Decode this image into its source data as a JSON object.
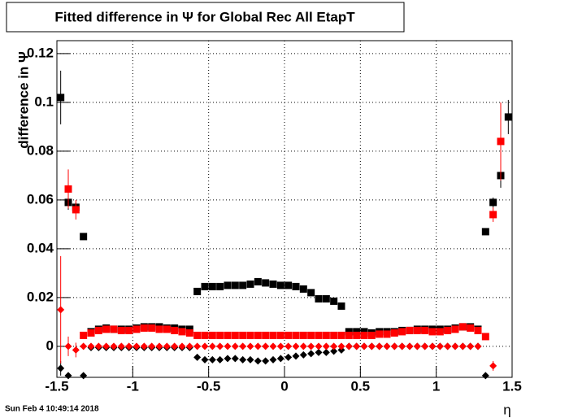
{
  "chart_data": {
    "type": "errorbar-scatter",
    "title": "Fitted difference in  Ψ  for Global Rec All EtapT",
    "y_label": "difference in  Ψ",
    "x_label": "η",
    "timestamp": "Sun Feb  4 10:49:14 2018",
    "xlim": [
      -1.5,
      1.5
    ],
    "ylim": [
      -0.0127,
      0.1253
    ],
    "xticks": [
      -1.5,
      -1,
      -0.5,
      0,
      0.5,
      1,
      1.5
    ],
    "yticks": [
      0,
      0.02,
      0.04,
      0.06,
      0.08,
      0.1,
      0.12
    ],
    "grid": true,
    "x": [
      -1.475,
      -1.425,
      -1.375,
      -1.325,
      -1.275,
      -1.225,
      -1.175,
      -1.125,
      -1.075,
      -1.025,
      -0.975,
      -0.925,
      -0.875,
      -0.825,
      -0.775,
      -0.725,
      -0.675,
      -0.625,
      -0.575,
      -0.525,
      -0.475,
      -0.425,
      -0.375,
      -0.325,
      -0.275,
      -0.225,
      -0.175,
      -0.125,
      -0.075,
      -0.025,
      0.025,
      0.075,
      0.125,
      0.175,
      0.225,
      0.275,
      0.325,
      0.375,
      0.425,
      0.475,
      0.525,
      0.575,
      0.625,
      0.675,
      0.725,
      0.775,
      0.825,
      0.875,
      0.925,
      0.975,
      1.025,
      1.075,
      1.125,
      1.175,
      1.225,
      1.275,
      1.325,
      1.375,
      1.425,
      1.475
    ],
    "series": [
      {
        "marker": "square",
        "color": "#000000",
        "values": [
          0.102,
          0.059,
          0.057,
          0.045,
          0.006,
          0.007,
          0.0075,
          0.007,
          0.007,
          0.007,
          0.0075,
          0.008,
          0.008,
          0.008,
          0.0075,
          0.0075,
          0.007,
          0.007,
          0.0225,
          0.0245,
          0.0245,
          0.0245,
          0.025,
          0.025,
          0.025,
          0.0255,
          0.0265,
          0.026,
          0.0255,
          0.025,
          0.025,
          0.0245,
          0.0235,
          0.022,
          0.0195,
          0.0195,
          0.0185,
          0.0165,
          0.006,
          0.006,
          0.006,
          0.0055,
          0.006,
          0.006,
          0.006,
          0.0065,
          0.0065,
          0.007,
          0.007,
          0.007,
          0.007,
          0.007,
          0.0075,
          0.008,
          0.008,
          0.007,
          0.047,
          0.059,
          0.07,
          0.094
        ],
        "errors": [
          0.011,
          0.003,
          0.002,
          0.001,
          0.0005,
          0.0005,
          0.0005,
          0.0005,
          0.0005,
          0.0005,
          0.0005,
          0.0005,
          0.0005,
          0.0005,
          0.0005,
          0.0005,
          0.0005,
          0.0005,
          0.0005,
          0.0005,
          0.0005,
          0.0005,
          0.0005,
          0.0005,
          0.0005,
          0.0005,
          0.0005,
          0.0005,
          0.0005,
          0.0005,
          0.0005,
          0.0005,
          0.0005,
          0.0005,
          0.0005,
          0.0005,
          0.0005,
          0.0005,
          0.0005,
          0.0005,
          0.0005,
          0.0005,
          0.0005,
          0.0005,
          0.0005,
          0.0005,
          0.0005,
          0.0005,
          0.0005,
          0.0005,
          0.0005,
          0.0005,
          0.0005,
          0.0005,
          0.0005,
          0.0005,
          0.001,
          0.002,
          0.005,
          0.007
        ]
      },
      {
        "marker": "square",
        "color": "#ff0000",
        "values": [
          null,
          0.0645,
          0.056,
          0.0045,
          0.0055,
          0.0065,
          0.007,
          0.007,
          0.0065,
          0.0065,
          0.007,
          0.0075,
          0.0075,
          0.007,
          0.007,
          0.0065,
          0.006,
          0.0055,
          0.0045,
          0.0045,
          0.0045,
          0.0045,
          0.0045,
          0.0045,
          0.0045,
          0.0045,
          0.0045,
          0.0045,
          0.0045,
          0.0045,
          0.0045,
          0.0045,
          0.0045,
          0.0045,
          0.0045,
          0.0045,
          0.0045,
          0.0045,
          0.0045,
          0.0045,
          0.0045,
          0.0045,
          0.005,
          0.005,
          0.0055,
          0.006,
          0.0065,
          0.0065,
          0.0065,
          0.006,
          0.006,
          0.0065,
          0.007,
          0.008,
          0.0075,
          0.0065,
          0.004,
          0.054,
          0.084,
          null
        ],
        "errors": [
          null,
          0.008,
          0.004,
          0.0005,
          0.0005,
          0.0005,
          0.0005,
          0.0005,
          0.0005,
          0.0005,
          0.0005,
          0.0005,
          0.0005,
          0.0005,
          0.0005,
          0.0005,
          0.0005,
          0.0005,
          0.0005,
          0.0005,
          0.0005,
          0.0005,
          0.0005,
          0.0005,
          0.0005,
          0.0005,
          0.0005,
          0.0005,
          0.0005,
          0.0005,
          0.0005,
          0.0005,
          0.0005,
          0.0005,
          0.0005,
          0.0005,
          0.0005,
          0.0005,
          0.0005,
          0.0005,
          0.0005,
          0.0005,
          0.0005,
          0.0005,
          0.0005,
          0.0005,
          0.0005,
          0.0005,
          0.0005,
          0.0005,
          0.0005,
          0.0005,
          0.0005,
          0.0005,
          0.0005,
          0.0005,
          0.001,
          0.003,
          0.016,
          null
        ]
      },
      {
        "marker": "diamond",
        "color": "#000000",
        "values": [
          -0.009,
          -0.012,
          null,
          -0.012,
          -0.0005,
          -0.0005,
          -0.0005,
          -0.0005,
          -0.0005,
          -0.0005,
          -0.0005,
          -0.0005,
          -0.0005,
          -0.0005,
          -0.0005,
          -0.0005,
          -0.0005,
          -0.0005,
          -0.0045,
          -0.0055,
          -0.0055,
          -0.0055,
          -0.005,
          -0.005,
          -0.0055,
          -0.0055,
          -0.006,
          -0.006,
          -0.0055,
          -0.005,
          -0.0045,
          -0.004,
          -0.0035,
          -0.003,
          -0.0025,
          -0.0025,
          -0.002,
          -0.0015,
          0,
          0,
          0,
          0,
          0,
          0,
          0,
          0,
          0,
          0,
          0,
          0,
          0,
          0,
          0,
          0,
          0,
          0,
          -0.012,
          null,
          null,
          null
        ],
        "errors": [
          0.003,
          0.001,
          null,
          0.001,
          0.0003,
          0.0003,
          0.0003,
          0.0003,
          0.0003,
          0.0003,
          0.0003,
          0.0003,
          0.0003,
          0.0003,
          0.0003,
          0.0003,
          0.0003,
          0.0003,
          0.0003,
          0.0003,
          0.0003,
          0.0003,
          0.0003,
          0.0003,
          0.0003,
          0.0003,
          0.0003,
          0.0003,
          0.0003,
          0.0003,
          0.0003,
          0.0003,
          0.0003,
          0.0003,
          0.0003,
          0.0003,
          0.0003,
          0.0003,
          0.0003,
          0.0003,
          0.0003,
          0.0003,
          0.0003,
          0.0003,
          0.0003,
          0.0003,
          0.0003,
          0.0003,
          0.0003,
          0.0003,
          0.0003,
          0.0003,
          0.0003,
          0.0003,
          0.0003,
          0.0003,
          0.001,
          null,
          null,
          null
        ]
      },
      {
        "marker": "diamond",
        "color": "#ff0000",
        "values": [
          0.015,
          0,
          -0.0015,
          0,
          0,
          0,
          0,
          0,
          0,
          0,
          0,
          0,
          0,
          0,
          0,
          0,
          0,
          0,
          0,
          0,
          0,
          0,
          0,
          0,
          0,
          0,
          0,
          0,
          0,
          0,
          0,
          0,
          0,
          0,
          0,
          0,
          0,
          0,
          0,
          0,
          0,
          0,
          0,
          0,
          0,
          0,
          0,
          0,
          0,
          0,
          0,
          0,
          0,
          0,
          0,
          0,
          null,
          -0.008,
          null,
          null
        ],
        "errors": [
          0.022,
          0.004,
          0.003,
          0.0003,
          0.0003,
          0.0003,
          0.0003,
          0.0003,
          0.0003,
          0.0003,
          0.0003,
          0.0003,
          0.0003,
          0.0003,
          0.0003,
          0.0003,
          0.0003,
          0.0003,
          0.0003,
          0.0003,
          0.0003,
          0.0003,
          0.0003,
          0.0003,
          0.0003,
          0.0003,
          0.0003,
          0.0003,
          0.0003,
          0.0003,
          0.0003,
          0.0003,
          0.0003,
          0.0003,
          0.0003,
          0.0003,
          0.0003,
          0.0003,
          0.0003,
          0.0003,
          0.0003,
          0.0003,
          0.0003,
          0.0003,
          0.0003,
          0.0003,
          0.0003,
          0.0003,
          0.0003,
          0.0003,
          0.0003,
          0.0003,
          0.0003,
          0.0003,
          0.0003,
          0.0003,
          null,
          0.002,
          null,
          null
        ]
      }
    ]
  }
}
